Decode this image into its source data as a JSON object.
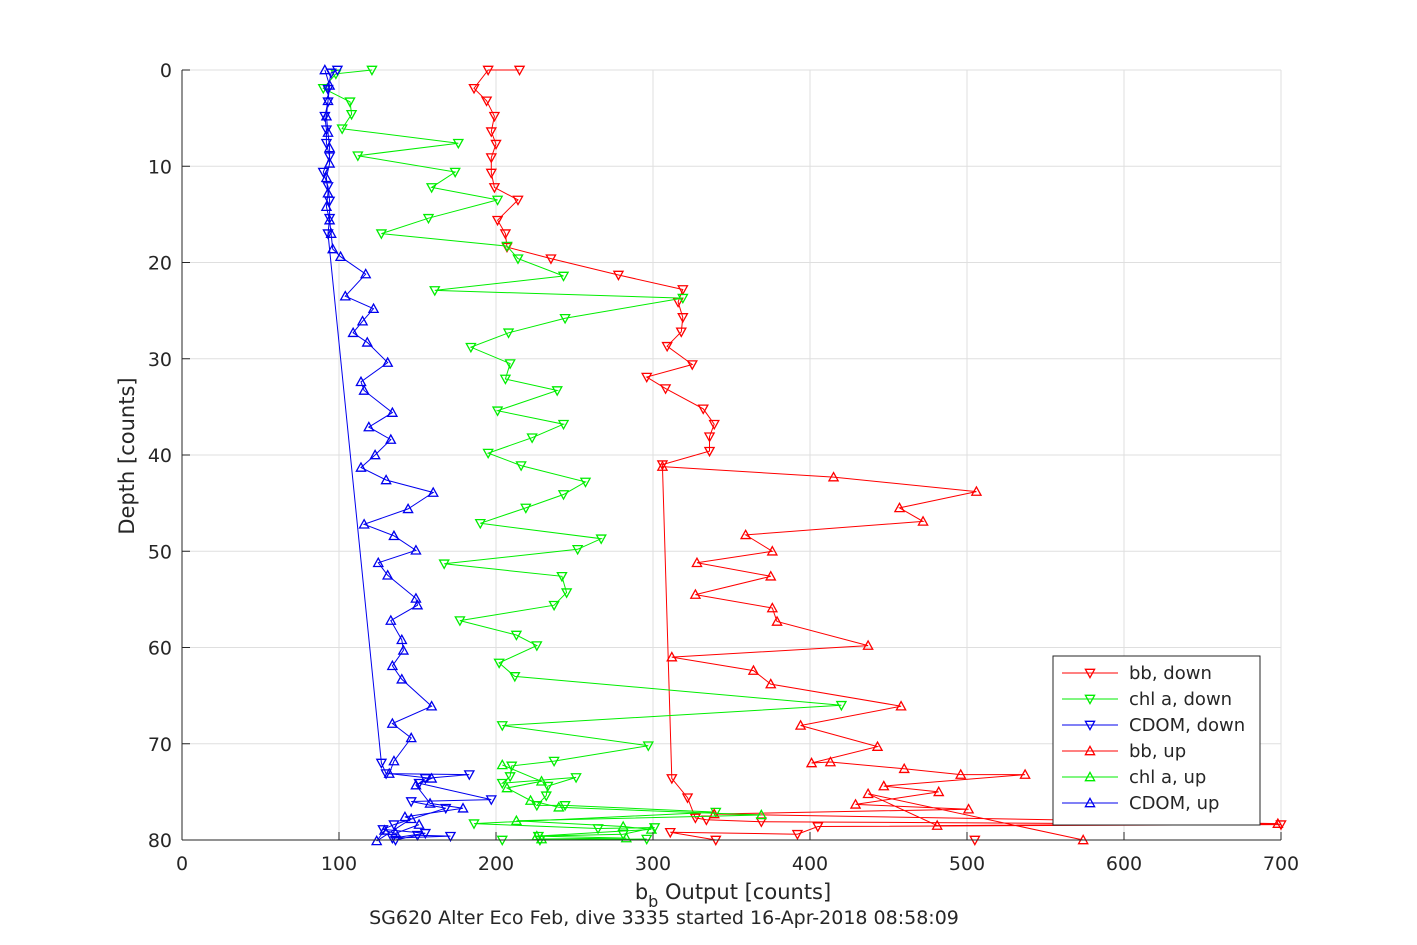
{
  "chart_data": {
    "type": "line",
    "xlabel": "b_b Output [counts]",
    "ylabel": "Depth [counts]",
    "caption": "SG620 Alter Eco Feb, dive 3335 started 16-Apr-2018 08:58:09",
    "xlim": [
      0,
      700
    ],
    "ylim": [
      80,
      0
    ],
    "y_reversed": true,
    "xticks": [
      0,
      100,
      200,
      300,
      400,
      500,
      600,
      700
    ],
    "yticks": [
      0,
      10,
      20,
      30,
      40,
      50,
      60,
      70,
      80
    ],
    "grid": true,
    "legend_position": "bottom-right",
    "series": [
      {
        "name": "bb, down",
        "color": "#ff0000",
        "marker": "triangle-down",
        "points": [
          [
            215,
            0
          ],
          [
            195,
            0
          ],
          [
            186,
            1.9
          ],
          [
            194,
            3.2
          ],
          [
            199,
            4.8
          ],
          [
            197,
            6.4
          ],
          [
            200,
            7.7
          ],
          [
            197,
            9.1
          ],
          [
            197,
            10.7
          ],
          [
            199,
            12.2
          ],
          [
            214,
            13.5
          ],
          [
            201,
            15.6
          ],
          [
            206,
            17
          ],
          [
            207,
            18.4
          ],
          [
            235,
            19.6
          ],
          [
            278,
            21.3
          ],
          [
            319,
            22.8
          ],
          [
            316,
            24.1
          ],
          [
            319,
            25.7
          ],
          [
            318,
            27.2
          ],
          [
            309,
            28.7
          ],
          [
            325,
            30.6
          ],
          [
            296,
            31.9
          ],
          [
            308,
            33.1
          ],
          [
            332,
            35.2
          ],
          [
            339,
            36.8
          ],
          [
            336,
            38.1
          ],
          [
            336,
            39.6
          ],
          [
            306,
            41
          ],
          [
            312,
            73.6
          ],
          [
            322,
            75.6
          ],
          [
            327,
            77.7
          ],
          [
            334,
            77.9
          ],
          [
            369,
            78.1
          ],
          [
            700,
            78.4
          ],
          [
            405,
            78.6
          ],
          [
            392,
            79.4
          ],
          [
            311,
            79.2
          ],
          [
            340,
            80.0
          ],
          [
            505,
            80.0
          ]
        ]
      },
      {
        "name": "chl a, down",
        "color": "#00ee00",
        "marker": "triangle-down",
        "points": [
          [
            121,
            0
          ],
          [
            98,
            0.4
          ],
          [
            90,
            1.9
          ],
          [
            107,
            3.3
          ],
          [
            108,
            4.6
          ],
          [
            102,
            6.1
          ],
          [
            176,
            7.6
          ],
          [
            112,
            8.9
          ],
          [
            174,
            10.6
          ],
          [
            159,
            12.2
          ],
          [
            201,
            13.5
          ],
          [
            157,
            15.4
          ],
          [
            127,
            17
          ],
          [
            207,
            18.3
          ],
          [
            214,
            19.6
          ],
          [
            243,
            21.4
          ],
          [
            161,
            22.9
          ],
          [
            319,
            23.7
          ],
          [
            244,
            25.8
          ],
          [
            208,
            27.3
          ],
          [
            184,
            28.8
          ],
          [
            209,
            30.5
          ],
          [
            206,
            32.1
          ],
          [
            239,
            33.3
          ],
          [
            201,
            35.4
          ],
          [
            243,
            36.8
          ],
          [
            223,
            38.2
          ],
          [
            195,
            39.8
          ],
          [
            216,
            41.1
          ],
          [
            257,
            42.8
          ],
          [
            243,
            44.1
          ],
          [
            219,
            45.5
          ],
          [
            190,
            47.1
          ],
          [
            267,
            48.7
          ],
          [
            252,
            49.8
          ],
          [
            167,
            51.3
          ],
          [
            242,
            52.6
          ],
          [
            245,
            54.3
          ],
          [
            237,
            55.6
          ],
          [
            177,
            57.2
          ],
          [
            213,
            58.7
          ],
          [
            226,
            59.8
          ],
          [
            202,
            61.6
          ],
          [
            212,
            63.0
          ],
          [
            420,
            66.0
          ],
          [
            204,
            68.1
          ],
          [
            297,
            70.2
          ],
          [
            237,
            71.8
          ],
          [
            210,
            72.3
          ],
          [
            209,
            73.4
          ],
          [
            204,
            74.1
          ],
          [
            251,
            73.5
          ],
          [
            233,
            74.4
          ],
          [
            232,
            75.4
          ],
          [
            226,
            76.4
          ],
          [
            244,
            76.4
          ],
          [
            340,
            77.1
          ],
          [
            186,
            78.3
          ],
          [
            265,
            78.8
          ],
          [
            301,
            78.7
          ],
          [
            281,
            79.4
          ],
          [
            227,
            79.6
          ],
          [
            228,
            80.0
          ],
          [
            204,
            80.0
          ],
          [
            296,
            79.9
          ]
        ]
      },
      {
        "name": "CDOM, down",
        "color": "#0000ee",
        "marker": "triangle-down",
        "points": [
          [
            99,
            0
          ],
          [
            95,
            0.3
          ],
          [
            93,
            2.0
          ],
          [
            93,
            3.3
          ],
          [
            91,
            4.8
          ],
          [
            92,
            6.2
          ],
          [
            92,
            7.6
          ],
          [
            94,
            9.0
          ],
          [
            90,
            10.6
          ],
          [
            93,
            12.1
          ],
          [
            94,
            13.6
          ],
          [
            94,
            15.4
          ],
          [
            93,
            17.0
          ],
          [
            127,
            72.0
          ],
          [
            130,
            73.1
          ],
          [
            183,
            73.2
          ],
          [
            155,
            73.6
          ],
          [
            151,
            74.1
          ],
          [
            197,
            75.8
          ],
          [
            146,
            76.0
          ],
          [
            168,
            76.7
          ],
          [
            135,
            78.4
          ],
          [
            128,
            78.9
          ],
          [
            155,
            79.3
          ],
          [
            134,
            79.8
          ],
          [
            171,
            79.6
          ],
          [
            150,
            79.5
          ],
          [
            136,
            80.0
          ]
        ]
      },
      {
        "name": "bb, up",
        "color": "#ff0000",
        "marker": "triangle-up",
        "points": [
          [
            306,
            41.2
          ],
          [
            415,
            42.3
          ],
          [
            506,
            43.8
          ],
          [
            457,
            45.5
          ],
          [
            472,
            46.9
          ],
          [
            359,
            48.3
          ],
          [
            376,
            50.0
          ],
          [
            328,
            51.2
          ],
          [
            375,
            52.6
          ],
          [
            327,
            54.5
          ],
          [
            376,
            55.9
          ],
          [
            379,
            57.3
          ],
          [
            437,
            59.8
          ],
          [
            312,
            61.0
          ],
          [
            364,
            62.4
          ],
          [
            375,
            63.8
          ],
          [
            458,
            66.1
          ],
          [
            394,
            68.1
          ],
          [
            443,
            70.3
          ],
          [
            401,
            72.0
          ],
          [
            413,
            71.9
          ],
          [
            460,
            72.6
          ],
          [
            496,
            73.2
          ],
          [
            537,
            73.2
          ],
          [
            447,
            74.4
          ],
          [
            482,
            75.0
          ],
          [
            429,
            76.3
          ],
          [
            501,
            76.8
          ],
          [
            339,
            77.3
          ],
          [
            698,
            78.3
          ],
          [
            481,
            78.5
          ],
          [
            437,
            75.2
          ],
          [
            574,
            80.0
          ]
        ]
      },
      {
        "name": "chl a, up",
        "color": "#00ee00",
        "marker": "triangle-up",
        "points": [
          [
            204,
            72.2
          ],
          [
            229,
            73.9
          ],
          [
            207,
            74.6
          ],
          [
            222,
            75.9
          ],
          [
            240,
            76.6
          ],
          [
            369,
            77.4
          ],
          [
            213,
            78.0
          ],
          [
            281,
            78.6
          ],
          [
            299,
            78.9
          ],
          [
            226,
            79.6
          ],
          [
            283,
            79.8
          ],
          [
            229,
            79.9
          ]
        ]
      },
      {
        "name": "CDOM, up",
        "color": "#0000ee",
        "marker": "triangle-up",
        "points": [
          [
            91,
            0
          ],
          [
            94,
            1.6
          ],
          [
            93,
            3.2
          ],
          [
            92,
            4.8
          ],
          [
            93,
            6.5
          ],
          [
            94,
            8.1
          ],
          [
            94,
            9.7
          ],
          [
            92,
            11.2
          ],
          [
            93,
            12.8
          ],
          [
            92,
            14.2
          ],
          [
            94,
            15.6
          ],
          [
            95,
            17.0
          ],
          [
            96,
            18.6
          ],
          [
            101,
            19.4
          ],
          [
            117,
            21.2
          ],
          [
            104,
            23.5
          ],
          [
            122,
            24.8
          ],
          [
            115,
            26.1
          ],
          [
            109,
            27.3
          ],
          [
            118,
            28.3
          ],
          [
            131,
            30.4
          ],
          [
            114,
            32.4
          ],
          [
            116,
            33.3
          ],
          [
            134,
            35.6
          ],
          [
            119,
            37.1
          ],
          [
            133,
            38.4
          ],
          [
            123,
            40.0
          ],
          [
            114,
            41.3
          ],
          [
            130,
            42.6
          ],
          [
            160,
            43.9
          ],
          [
            144,
            45.6
          ],
          [
            116,
            47.2
          ],
          [
            135,
            48.4
          ],
          [
            149,
            49.9
          ],
          [
            125,
            51.2
          ],
          [
            131,
            52.5
          ],
          [
            149,
            54.9
          ],
          [
            150,
            55.6
          ],
          [
            133,
            57.2
          ],
          [
            140,
            59.2
          ],
          [
            141,
            60.3
          ],
          [
            134,
            61.9
          ],
          [
            140,
            63.3
          ],
          [
            159,
            66.1
          ],
          [
            134,
            67.9
          ],
          [
            146,
            69.4
          ],
          [
            135,
            71.8
          ],
          [
            132,
            73.1
          ],
          [
            159,
            73.6
          ],
          [
            149,
            74.3
          ],
          [
            158,
            76.2
          ],
          [
            179,
            76.7
          ],
          [
            142,
            77.6
          ],
          [
            146,
            77.8
          ],
          [
            124,
            80.1
          ],
          [
            129,
            79.0
          ],
          [
            136,
            79.3
          ],
          [
            151,
            78.4
          ]
        ]
      }
    ]
  }
}
